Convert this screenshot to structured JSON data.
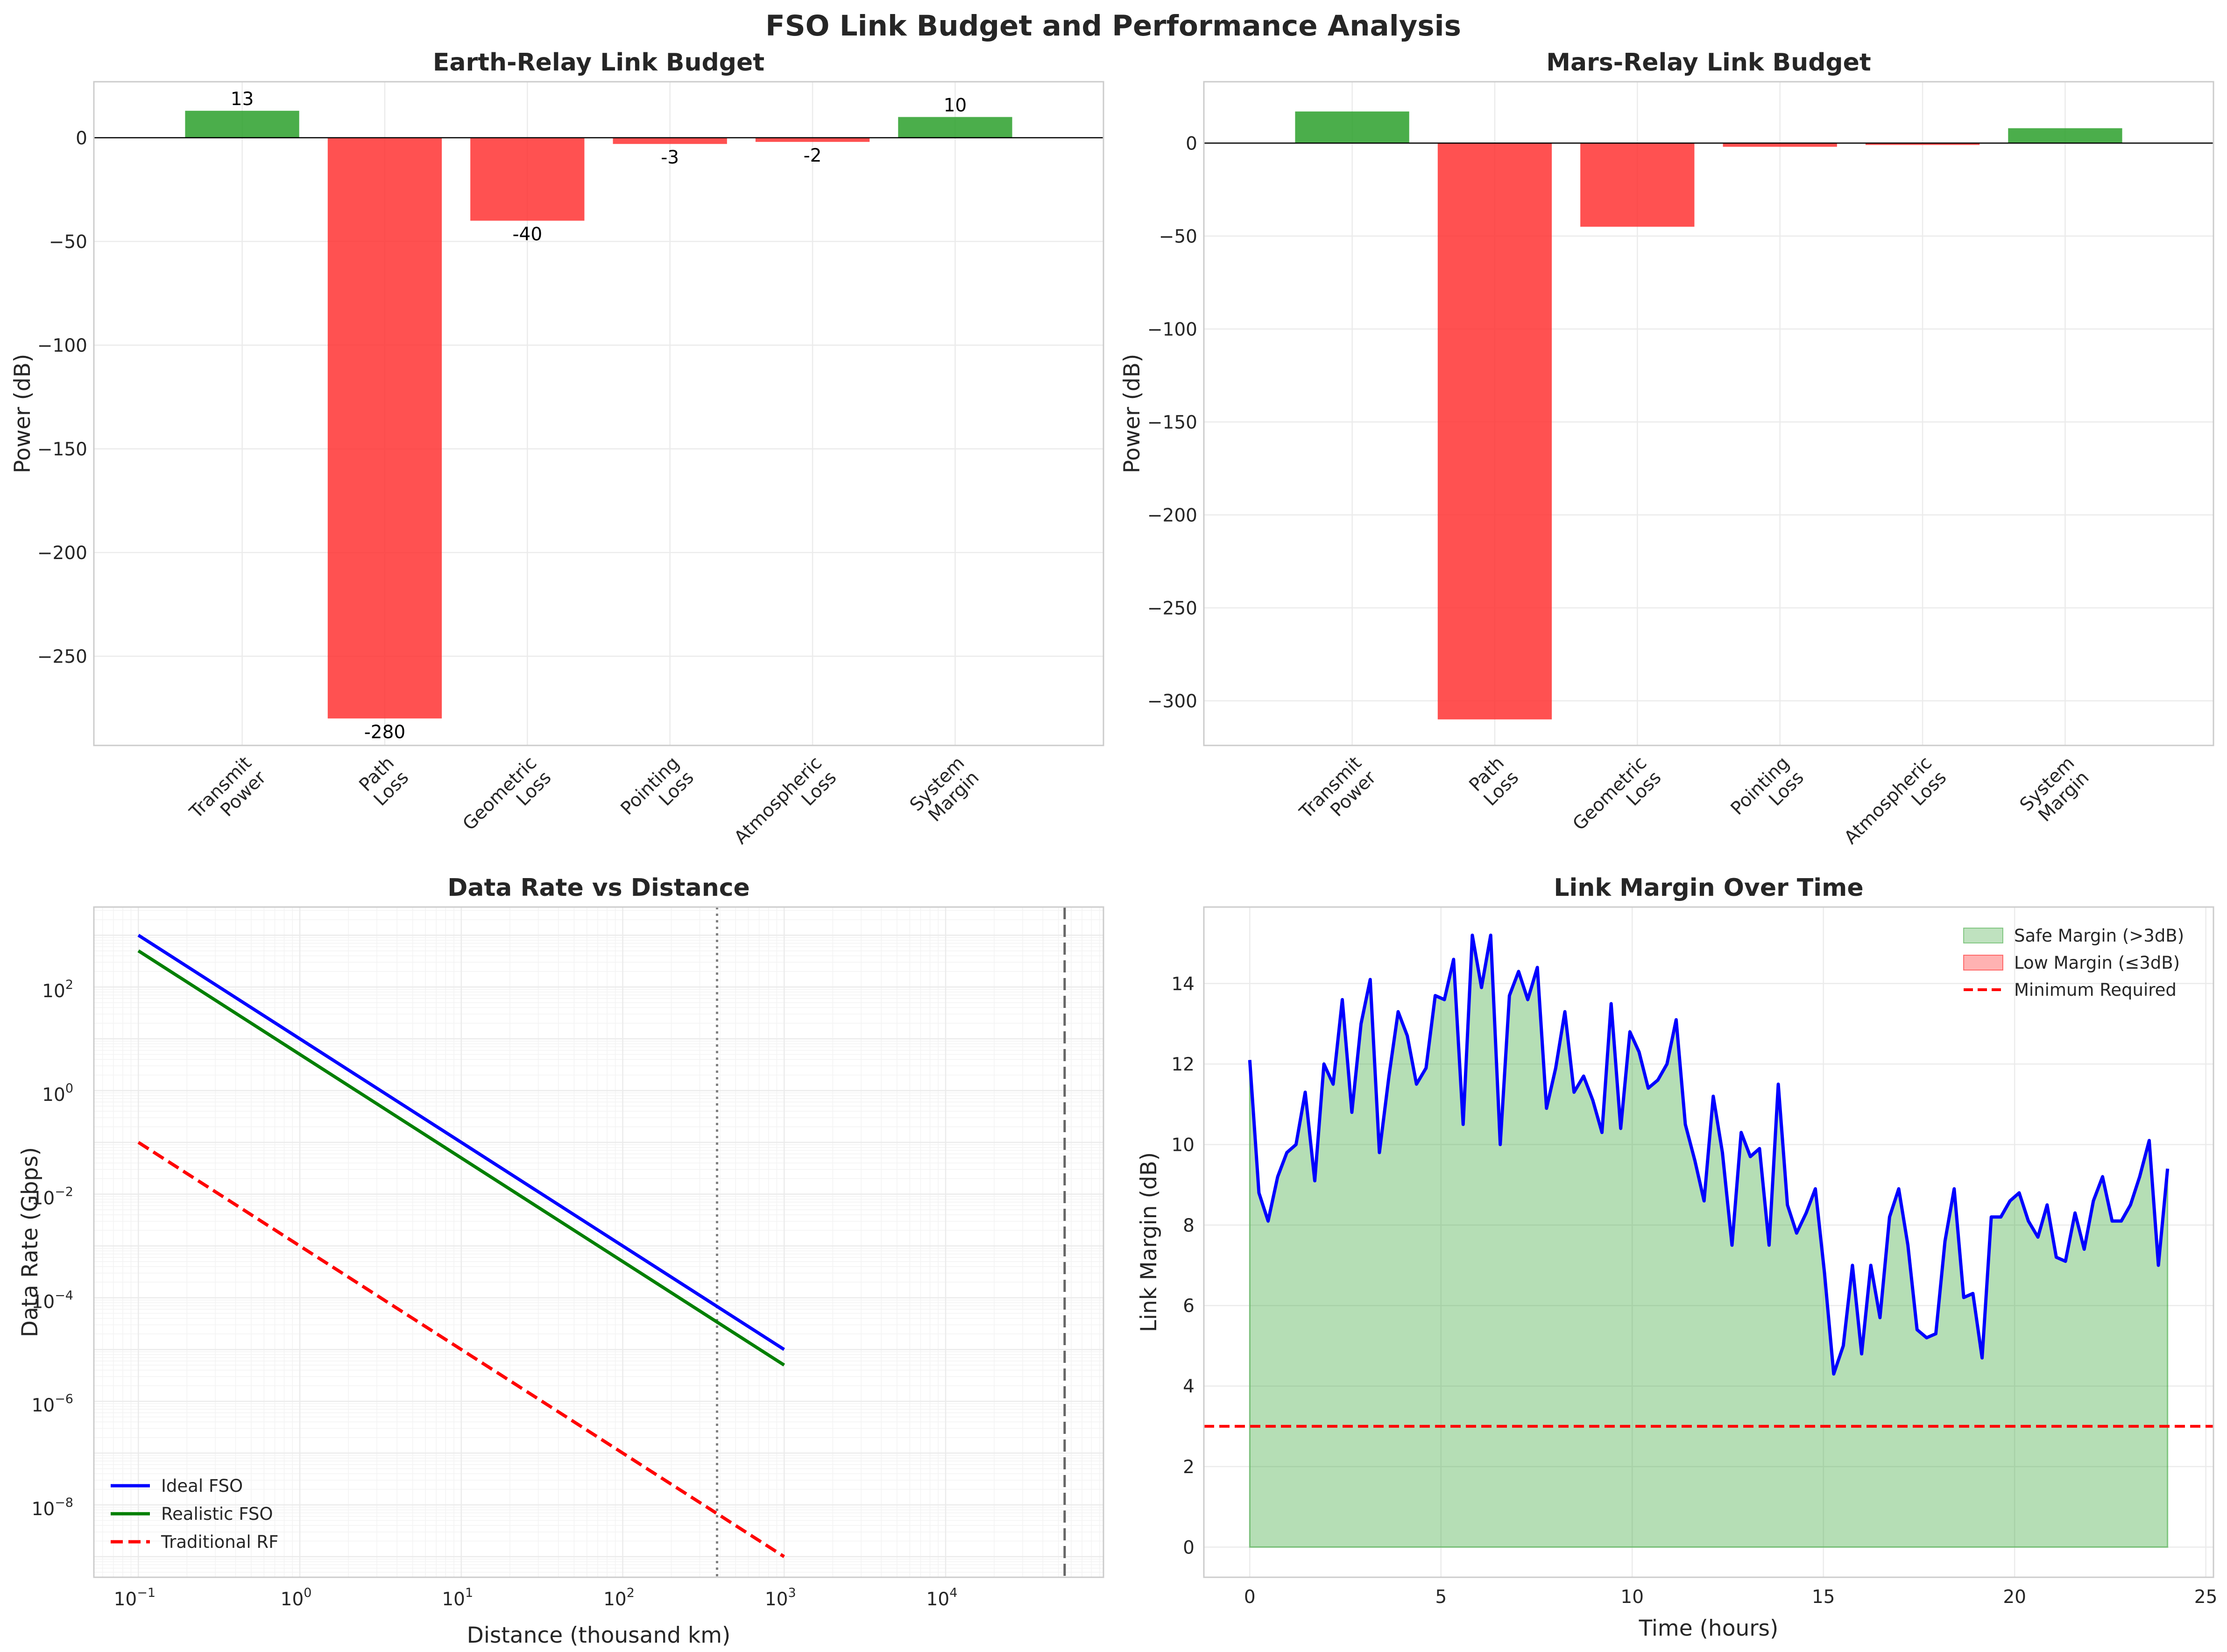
{
  "figure": {
    "title": "FSO Link Budget and Performance Analysis"
  },
  "chart_data": [
    {
      "type": "bar",
      "title": "Earth-Relay Link Budget",
      "xlabel": "",
      "ylabel": "Power (dB)",
      "categories": [
        "Transmit\nPower",
        "Path\nLoss",
        "Geometric\nLoss",
        "Pointing\nLoss",
        "Atmospheric\nLoss",
        "System\nMargin"
      ],
      "values": [
        13,
        -280,
        -40,
        -3,
        -2,
        10
      ],
      "value_labels": [
        "13",
        "-280",
        "-40",
        "-3",
        "-2",
        "10"
      ],
      "ylim": [
        -293,
        27
      ],
      "yticks": [
        0,
        -50,
        -100,
        -150,
        -200,
        -250
      ],
      "ytick_labels": [
        "0",
        "−50",
        "−100",
        "−150",
        "−200",
        "−250"
      ],
      "colors": {
        "positive": "#2ca02c",
        "negative": "#ff3333"
      },
      "grid": true
    },
    {
      "type": "bar",
      "title": "Mars-Relay Link Budget",
      "xlabel": "",
      "ylabel": "Power (dB)",
      "categories": [
        "Transmit\nPower",
        "Path\nLoss",
        "Geometric\nLoss",
        "Pointing\nLoss",
        "Atmospheric\nLoss",
        "System\nMargin"
      ],
      "values": [
        17,
        -310,
        -45,
        -2,
        -1,
        8
      ],
      "ylim": [
        -324,
        33
      ],
      "yticks": [
        0,
        -50,
        -100,
        -150,
        -200,
        -250,
        -300
      ],
      "ytick_labels": [
        "0",
        "−50",
        "−100",
        "−150",
        "−200",
        "−250",
        "−300"
      ],
      "colors": {
        "positive": "#2ca02c",
        "negative": "#ff3333"
      },
      "grid": true
    },
    {
      "type": "line",
      "title": "Data Rate vs Distance",
      "xlabel": "Distance (thousand km)",
      "ylabel": "Data Rate (Gbps)",
      "x_scale": "log",
      "y_scale": "log",
      "xlim": [
        0.053,
        95000
      ],
      "ylim": [
        4e-10,
        3500
      ],
      "xticks": [
        {
          "base": "10",
          "exp": "−1",
          "value": 0.1
        },
        {
          "base": "10",
          "exp": "0",
          "value": 1
        },
        {
          "base": "10",
          "exp": "1",
          "value": 10
        },
        {
          "base": "10",
          "exp": "2",
          "value": 100
        },
        {
          "base": "10",
          "exp": "3",
          "value": 1000
        },
        {
          "base": "10",
          "exp": "4",
          "value": 10000
        }
      ],
      "yticks": [
        {
          "base": "10",
          "exp": "2",
          "value": 100
        },
        {
          "base": "10",
          "exp": "0",
          "value": 1
        },
        {
          "base": "10",
          "exp": "−2",
          "value": 0.01
        },
        {
          "base": "10",
          "exp": "−4",
          "value": 0.0001
        },
        {
          "base": "10",
          "exp": "−6",
          "value": 1e-06
        },
        {
          "base": "10",
          "exp": "−8",
          "value": 1e-08
        }
      ],
      "series": [
        {
          "name": "Ideal FSO",
          "color": "#0000ff",
          "dash": "solid",
          "x": [
            0.1,
            1000
          ],
          "y": [
            1000,
            1e-05
          ]
        },
        {
          "name": "Realistic FSO",
          "color": "#007f00",
          "dash": "solid",
          "x": [
            0.1,
            1000
          ],
          "y": [
            500,
            5e-06
          ]
        },
        {
          "name": "Traditional RF",
          "color": "#ff0000",
          "dash": "dashed",
          "x": [
            0.1,
            1000
          ],
          "y": [
            0.1,
            1e-09
          ]
        }
      ],
      "vlines": [
        {
          "x": 384,
          "style": "dotted",
          "color": "#808080"
        },
        {
          "x": 54600,
          "style": "dashed",
          "color": "#666666"
        }
      ],
      "legend": "lower-left",
      "grid": true
    },
    {
      "type": "area",
      "title": "Link Margin Over Time",
      "xlabel": "Time (hours)",
      "ylabel": "Link Margin (dB)",
      "xlim": [
        -1.2,
        25.2
      ],
      "ylim": [
        -0.75,
        15.9
      ],
      "xticks": [
        0,
        5,
        10,
        15,
        20,
        25
      ],
      "yticks": [
        0,
        2,
        4,
        6,
        8,
        10,
        12,
        14
      ],
      "threshold": 3,
      "series": [
        {
          "name": "Link Margin",
          "color": "#0000ff",
          "x": [
            0,
            0.24,
            0.48,
            0.73,
            0.97,
            1.21,
            1.45,
            1.7,
            1.94,
            2.18,
            2.42,
            2.67,
            2.91,
            3.15,
            3.39,
            3.64,
            3.88,
            4.12,
            4.36,
            4.61,
            4.85,
            5.09,
            5.33,
            5.58,
            5.82,
            6.06,
            6.3,
            6.55,
            6.79,
            7.03,
            7.27,
            7.52,
            7.76,
            8,
            8.24,
            8.48,
            8.73,
            8.97,
            9.21,
            9.45,
            9.7,
            9.94,
            10.18,
            10.42,
            10.67,
            10.91,
            11.15,
            11.39,
            11.64,
            11.88,
            12.12,
            12.36,
            12.61,
            12.85,
            13.09,
            13.33,
            13.58,
            13.82,
            14.06,
            14.3,
            14.55,
            14.79,
            15.03,
            15.27,
            15.52,
            15.76,
            16,
            16.24,
            16.48,
            16.73,
            16.97,
            17.21,
            17.45,
            17.7,
            17.94,
            18.18,
            18.42,
            18.67,
            18.91,
            19.15,
            19.39,
            19.64,
            19.88,
            20.12,
            20.36,
            20.61,
            20.85,
            21.09,
            21.33,
            21.58,
            21.82,
            22.06,
            22.3,
            22.55,
            22.79,
            23.03,
            23.27,
            23.52,
            23.76,
            24
          ],
          "y": [
            12.1,
            8.8,
            8.1,
            9.2,
            9.8,
            10.0,
            11.3,
            9.1,
            12.0,
            11.5,
            13.6,
            10.8,
            13.0,
            14.1,
            9.8,
            11.7,
            13.3,
            12.7,
            11.5,
            11.9,
            13.7,
            13.6,
            14.6,
            10.5,
            15.2,
            13.9,
            15.2,
            10.0,
            13.7,
            14.3,
            13.6,
            14.4,
            10.9,
            11.9,
            13.3,
            11.3,
            11.7,
            11.1,
            10.3,
            13.5,
            10.4,
            12.8,
            12.3,
            11.4,
            11.6,
            12.0,
            13.1,
            10.5,
            9.6,
            8.6,
            11.2,
            9.8,
            7.5,
            10.3,
            9.7,
            9.9,
            7.5,
            11.5,
            8.5,
            7.8,
            8.3,
            8.9,
            6.8,
            4.3,
            5.0,
            7.0,
            4.8,
            7.0,
            5.7,
            8.2,
            8.9,
            7.5,
            5.4,
            5.2,
            5.3,
            7.6,
            8.9,
            6.2,
            6.3,
            4.7,
            8.2,
            8.2,
            8.6,
            8.8,
            8.1,
            7.7,
            8.5,
            7.2,
            7.1,
            8.3,
            7.4,
            8.6,
            9.2,
            8.1,
            8.1,
            8.5,
            9.2,
            10.1,
            7.0,
            9.4
          ]
        }
      ],
      "legend_entries": [
        {
          "label": "Safe Margin (>3dB)",
          "kind": "fill",
          "color": "#2ca02c"
        },
        {
          "label": "Low Margin (≤3dB)",
          "kind": "fill",
          "color": "#ff0000"
        },
        {
          "label": "Minimum Required",
          "kind": "dashed-line",
          "color": "#ff0000"
        }
      ],
      "legend": "top-right",
      "grid": true
    }
  ]
}
